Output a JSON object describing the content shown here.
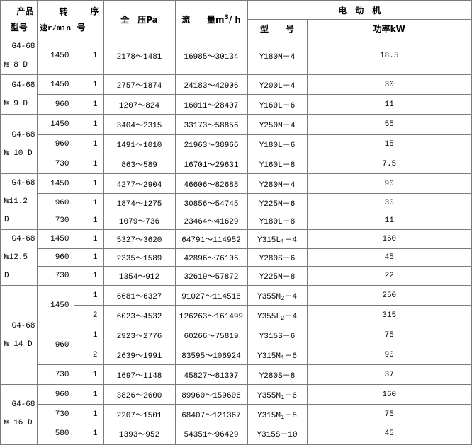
{
  "header": {
    "product_line1": "产品",
    "product_line2": "型号",
    "speed_line1": "转",
    "speed_line2": "速r/min",
    "seq_line1": "序",
    "seq_line2": "号",
    "pressure": "全　压Pa",
    "flow_label": "流　　量m",
    "flow_sup": "3",
    "flow_unit": "/ h",
    "motor": "电　动　机",
    "motor_model": "型　　号",
    "motor_power": "功率kW"
  },
  "groups": [
    {
      "model_line1": "G4-68",
      "model_line2": "№ 8 D",
      "speeds": [
        {
          "speed": "1450",
          "rows": [
            {
              "seq": "1",
              "pressure": "2178～1481",
              "flow": "16985～30134",
              "motor": {
                "main": "Y180M",
                "sub": "",
                "tail": "－4"
              },
              "power": "18.5"
            }
          ]
        }
      ]
    },
    {
      "model_line1": "G4-68",
      "model_line2": "№ 9 D",
      "speeds": [
        {
          "speed": "1450",
          "rows": [
            {
              "seq": "1",
              "pressure": "2757～1874",
              "flow": "24183～42906",
              "motor": {
                "main": "Y200L",
                "sub": "",
                "tail": "－4"
              },
              "power": "30"
            }
          ]
        },
        {
          "speed": "960",
          "rows": [
            {
              "seq": "1",
              "pressure": "1207～824",
              "flow": "16011～28407",
              "motor": {
                "main": "Y160L",
                "sub": "",
                "tail": "－6"
              },
              "power": "11"
            }
          ]
        }
      ]
    },
    {
      "model_line1": "G4-68",
      "model_line2": "№ 10 D",
      "speeds": [
        {
          "speed": "1450",
          "rows": [
            {
              "seq": "1",
              "pressure": "3404～2315",
              "flow": "33173～58856",
              "motor": {
                "main": "Y250M",
                "sub": "",
                "tail": "－4"
              },
              "power": "55"
            }
          ]
        },
        {
          "speed": "960",
          "rows": [
            {
              "seq": "1",
              "pressure": "1491～1010",
              "flow": "21963～38966",
              "motor": {
                "main": "Y180L",
                "sub": "",
                "tail": "－6"
              },
              "power": "15"
            }
          ]
        },
        {
          "speed": "730",
          "rows": [
            {
              "seq": "1",
              "pressure": "863～589",
              "flow": "16701～29631",
              "motor": {
                "main": "Y160L",
                "sub": "",
                "tail": "－8"
              },
              "power": "7.5"
            }
          ]
        }
      ]
    },
    {
      "model_line1": "G4-68",
      "model_line2": "№11.2 D",
      "speeds": [
        {
          "speed": "1450",
          "rows": [
            {
              "seq": "1",
              "pressure": "4277～2904",
              "flow": "46606～82688",
              "motor": {
                "main": "Y280M",
                "sub": "",
                "tail": "－4"
              },
              "power": "90"
            }
          ]
        },
        {
          "speed": "960",
          "rows": [
            {
              "seq": "1",
              "pressure": "1874～1275",
              "flow": "30856～54745",
              "motor": {
                "main": "Y225M",
                "sub": "",
                "tail": "－6"
              },
              "power": "30"
            }
          ]
        },
        {
          "speed": "730",
          "rows": [
            {
              "seq": "1",
              "pressure": "1079～736",
              "flow": "23464～41629",
              "motor": {
                "main": "Y180L",
                "sub": "",
                "tail": "－8"
              },
              "power": "11"
            }
          ]
        }
      ]
    },
    {
      "model_line1": "G4-68",
      "model_line2": "№12.5 D",
      "speeds": [
        {
          "speed": "1450",
          "rows": [
            {
              "seq": "1",
              "pressure": "5327～3620",
              "flow": "64791～114952",
              "motor": {
                "main": "Y315L",
                "sub": "1",
                "tail": "－4"
              },
              "power": "160"
            }
          ]
        },
        {
          "speed": "960",
          "rows": [
            {
              "seq": "1",
              "pressure": "2335～1589",
              "flow": "42896～76106",
              "motor": {
                "main": "Y280S",
                "sub": "",
                "tail": "－6"
              },
              "power": "45"
            }
          ]
        },
        {
          "speed": "730",
          "rows": [
            {
              "seq": "1",
              "pressure": "1354～912",
              "flow": "32619～57872",
              "motor": {
                "main": "Y225M",
                "sub": "",
                "tail": "－8"
              },
              "power": "22"
            }
          ]
        }
      ]
    },
    {
      "model_line1": "G4-68",
      "model_line2": "№ 14 D",
      "speeds": [
        {
          "speed": "1450",
          "rows": [
            {
              "seq": "1",
              "pressure": "6681～6327",
              "flow": "91027～114518",
              "motor": {
                "main": "Y355M",
                "sub": "2",
                "tail": "－4"
              },
              "power": "250"
            },
            {
              "seq": "2",
              "pressure": "6023～4532",
              "flow": "126263～161499",
              "motor": {
                "main": "Y355L",
                "sub": "2",
                "tail": "－4"
              },
              "power": "315"
            }
          ]
        },
        {
          "speed": "960",
          "rows": [
            {
              "seq": "1",
              "pressure": "2923～2776",
              "flow": "60266～75819",
              "motor": {
                "main": "Y315S",
                "sub": "",
                "tail": "－6"
              },
              "power": "75"
            },
            {
              "seq": "2",
              "pressure": "2639～1991",
              "flow": "83595～106924",
              "motor": {
                "main": "Y315M",
                "sub": "1",
                "tail": "－6"
              },
              "power": "90"
            }
          ]
        },
        {
          "speed": "730",
          "rows": [
            {
              "seq": "1",
              "pressure": "1697～1148",
              "flow": "45827～81307",
              "motor": {
                "main": "Y280S",
                "sub": "",
                "tail": "－8"
              },
              "power": "37"
            }
          ]
        }
      ]
    },
    {
      "model_line1": "G4-68",
      "model_line2": "№ 16 D",
      "speeds": [
        {
          "speed": "960",
          "rows": [
            {
              "seq": "1",
              "pressure": "3826～2600",
              "flow": "89960～159606",
              "motor": {
                "main": "Y355M",
                "sub": "1",
                "tail": "－6"
              },
              "power": "160"
            }
          ]
        },
        {
          "speed": "730",
          "rows": [
            {
              "seq": "1",
              "pressure": "2207～1501",
              "flow": "68407～121367",
              "motor": {
                "main": "Y315M",
                "sub": "1",
                "tail": "－8"
              },
              "power": "75"
            }
          ]
        },
        {
          "speed": "580",
          "rows": [
            {
              "seq": "1",
              "pressure": "1393～952",
              "flow": "54351～96429",
              "motor": {
                "main": "Y315S",
                "sub": "",
                "tail": "－10"
              },
              "power": "45"
            }
          ]
        }
      ]
    }
  ]
}
